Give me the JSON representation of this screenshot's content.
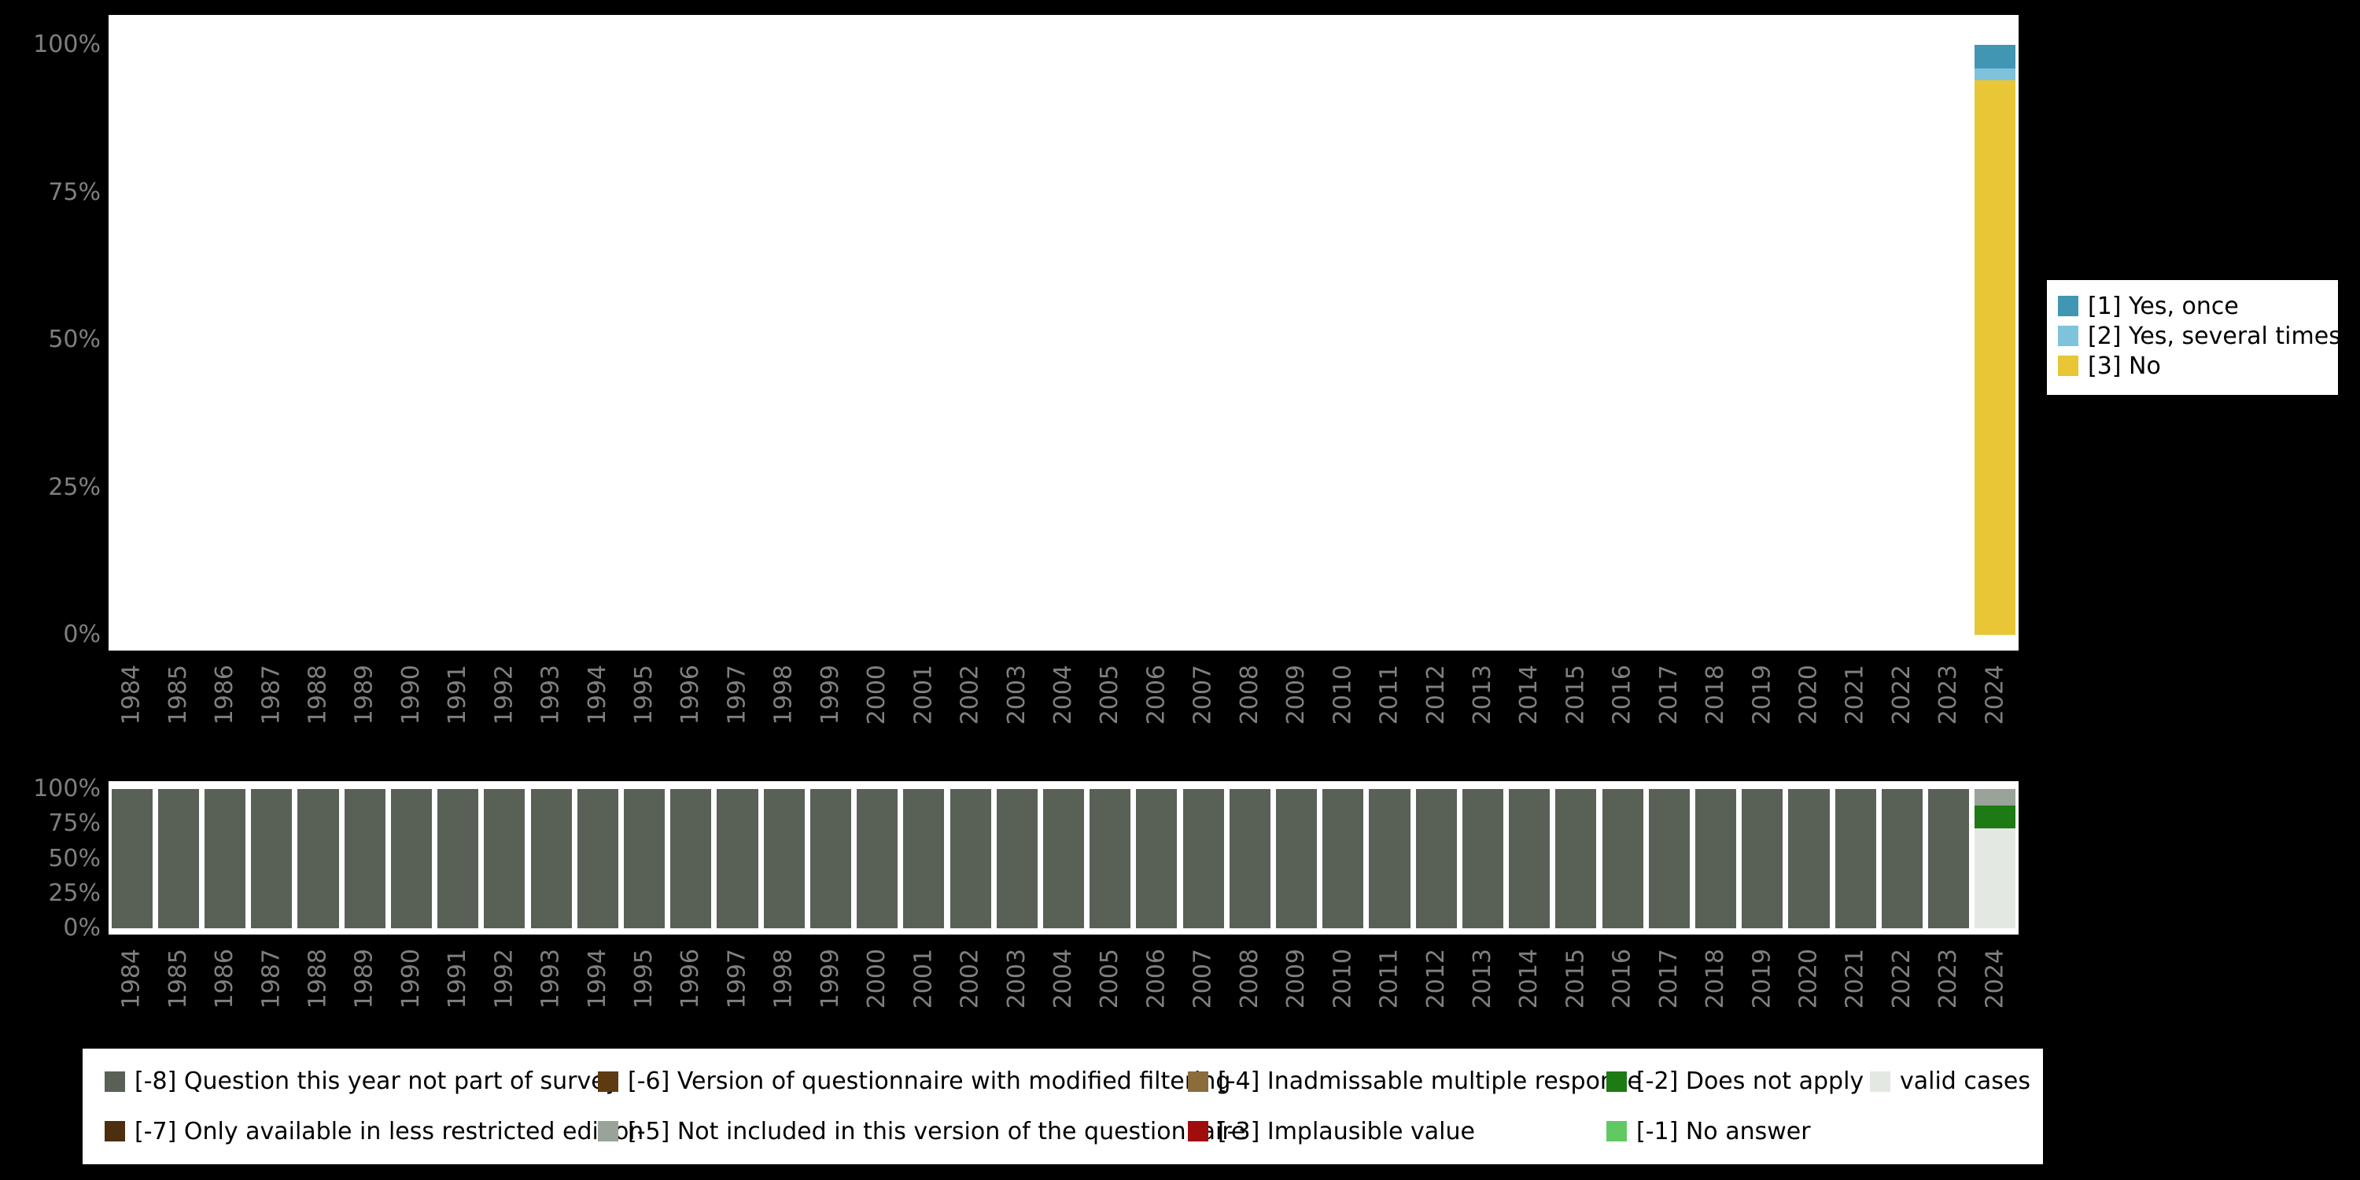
{
  "colors": {
    "background": "#000000",
    "plot_background": "#ffffff",
    "axis_text": "#7f7f7f"
  },
  "legend_right": {
    "items": [
      {
        "label": "[1] Yes, once",
        "color": "#4196b4"
      },
      {
        "label": "[2] Yes, several times",
        "color": "#7fc2db"
      },
      {
        "label": "[3] No",
        "color": "#e8c636"
      }
    ]
  },
  "legend_bottom": {
    "items": [
      {
        "label": "[-8] Question this year not part of survey",
        "color": "#596157",
        "row": 1,
        "col": 1
      },
      {
        "label": "[-6] Version of questionnaire with modified filtering",
        "color": "#5e3a12",
        "row": 1,
        "col": 2
      },
      {
        "label": "[-4] Inadmissable multiple response",
        "color": "#8a6d3b",
        "row": 1,
        "col": 3
      },
      {
        "label": "[-2] Does not apply",
        "color": "#1e7a14",
        "row": 1,
        "col": 4
      },
      {
        "label": "valid cases",
        "color": "#e4e8e3",
        "row": 1,
        "col": 5
      },
      {
        "label": "[-7] Only available in less restricted edition",
        "color": "#4d2e0e",
        "row": 2,
        "col": 1
      },
      {
        "label": "[-5] Not included in this version of the questionnaire",
        "color": "#99a39a",
        "row": 2,
        "col": 2
      },
      {
        "label": "[-3] Implausible value",
        "color": "#a00d0d",
        "row": 2,
        "col": 3
      },
      {
        "label": "[-1] No answer",
        "color": "#62c962",
        "row": 2,
        "col": 4
      }
    ]
  },
  "chart_data": [
    {
      "name": "values-over-time",
      "type": "bar",
      "stacked": true,
      "title": "",
      "xlabel": "",
      "ylabel": "",
      "ylim": [
        0,
        100
      ],
      "ytick_labels": [
        "0%",
        "25%",
        "50%",
        "75%",
        "100%"
      ],
      "yticks": [
        0,
        25,
        50,
        75,
        100
      ],
      "categories": [
        "1984",
        "1985",
        "1986",
        "1987",
        "1988",
        "1989",
        "1990",
        "1991",
        "1992",
        "1993",
        "1994",
        "1995",
        "1996",
        "1997",
        "1998",
        "1999",
        "2000",
        "2001",
        "2002",
        "2003",
        "2004",
        "2005",
        "2006",
        "2007",
        "2008",
        "2009",
        "2010",
        "2011",
        "2012",
        "2013",
        "2014",
        "2015",
        "2016",
        "2017",
        "2018",
        "2019",
        "2020",
        "2021",
        "2022",
        "2023",
        "2024"
      ],
      "series": [
        {
          "name": "[3] No",
          "color": "#e8c636",
          "values": [
            0,
            0,
            0,
            0,
            0,
            0,
            0,
            0,
            0,
            0,
            0,
            0,
            0,
            0,
            0,
            0,
            0,
            0,
            0,
            0,
            0,
            0,
            0,
            0,
            0,
            0,
            0,
            0,
            0,
            0,
            0,
            0,
            0,
            0,
            0,
            0,
            0,
            0,
            0,
            0,
            94
          ]
        },
        {
          "name": "[2] Yes, several times",
          "color": "#7fc2db",
          "values": [
            0,
            0,
            0,
            0,
            0,
            0,
            0,
            0,
            0,
            0,
            0,
            0,
            0,
            0,
            0,
            0,
            0,
            0,
            0,
            0,
            0,
            0,
            0,
            0,
            0,
            0,
            0,
            0,
            0,
            0,
            0,
            0,
            0,
            0,
            0,
            0,
            0,
            0,
            0,
            0,
            2
          ]
        },
        {
          "name": "[1] Yes, once",
          "color": "#4196b4",
          "values": [
            0,
            0,
            0,
            0,
            0,
            0,
            0,
            0,
            0,
            0,
            0,
            0,
            0,
            0,
            0,
            0,
            0,
            0,
            0,
            0,
            0,
            0,
            0,
            0,
            0,
            0,
            0,
            0,
            0,
            0,
            0,
            0,
            0,
            0,
            0,
            0,
            0,
            0,
            0,
            0,
            4
          ]
        }
      ]
    },
    {
      "name": "missing-values-over-time",
      "type": "bar",
      "stacked": true,
      "title": "",
      "xlabel": "",
      "ylabel": "",
      "ylim": [
        0,
        100
      ],
      "ytick_labels": [
        "0%",
        "25%",
        "50%",
        "75%",
        "100%"
      ],
      "yticks": [
        0,
        25,
        50,
        75,
        100
      ],
      "categories": [
        "1984",
        "1985",
        "1986",
        "1987",
        "1988",
        "1989",
        "1990",
        "1991",
        "1992",
        "1993",
        "1994",
        "1995",
        "1996",
        "1997",
        "1998",
        "1999",
        "2000",
        "2001",
        "2002",
        "2003",
        "2004",
        "2005",
        "2006",
        "2007",
        "2008",
        "2009",
        "2010",
        "2011",
        "2012",
        "2013",
        "2014",
        "2015",
        "2016",
        "2017",
        "2018",
        "2019",
        "2020",
        "2021",
        "2022",
        "2023",
        "2024"
      ],
      "series": [
        {
          "name": "valid cases",
          "color": "#e4e8e3",
          "values": [
            0,
            0,
            0,
            0,
            0,
            0,
            0,
            0,
            0,
            0,
            0,
            0,
            0,
            0,
            0,
            0,
            0,
            0,
            0,
            0,
            0,
            0,
            0,
            0,
            0,
            0,
            0,
            0,
            0,
            0,
            0,
            0,
            0,
            0,
            0,
            0,
            0,
            0,
            0,
            0,
            72
          ]
        },
        {
          "name": "[-2] Does not apply",
          "color": "#1e7a14",
          "values": [
            0,
            0,
            0,
            0,
            0,
            0,
            0,
            0,
            0,
            0,
            0,
            0,
            0,
            0,
            0,
            0,
            0,
            0,
            0,
            0,
            0,
            0,
            0,
            0,
            0,
            0,
            0,
            0,
            0,
            0,
            0,
            0,
            0,
            0,
            0,
            0,
            0,
            0,
            0,
            0,
            16
          ]
        },
        {
          "name": "[-5] Not included in this version of the questionnaire",
          "color": "#99a39a",
          "values": [
            0,
            0,
            0,
            0,
            0,
            0,
            0,
            0,
            0,
            0,
            0,
            0,
            0,
            0,
            0,
            0,
            0,
            0,
            0,
            0,
            0,
            0,
            0,
            0,
            0,
            0,
            0,
            0,
            0,
            0,
            0,
            0,
            0,
            0,
            0,
            0,
            0,
            0,
            0,
            0,
            12
          ]
        },
        {
          "name": "[-8] Question this year not part of survey",
          "color": "#596157",
          "values": [
            100,
            100,
            100,
            100,
            100,
            100,
            100,
            100,
            100,
            100,
            100,
            100,
            100,
            100,
            100,
            100,
            100,
            100,
            100,
            100,
            100,
            100,
            100,
            100,
            100,
            100,
            100,
            100,
            100,
            100,
            100,
            100,
            100,
            100,
            100,
            100,
            100,
            100,
            100,
            100,
            0
          ]
        }
      ]
    }
  ]
}
